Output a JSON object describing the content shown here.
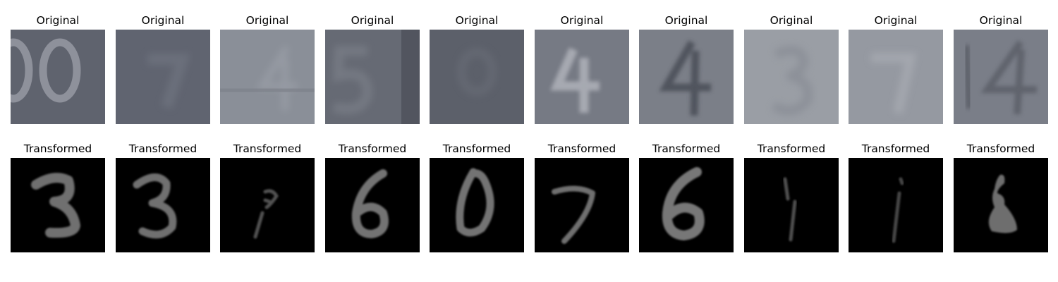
{
  "figure": {
    "rows": [
      {
        "name": "original",
        "panels": [
          {
            "title": "Original",
            "image": "house-number-digits-00",
            "tone": "#5f636e"
          },
          {
            "title": "Original",
            "image": "house-number-digit-7-blurred",
            "tone": "#606470"
          },
          {
            "title": "Original",
            "image": "house-number-digit-4-faint",
            "tone": "#8a8f98"
          },
          {
            "title": "Original",
            "image": "house-number-digit-5-blurred",
            "tone": "#666a74"
          },
          {
            "title": "Original",
            "image": "house-number-digit-blurred-dark",
            "tone": "#5c606a"
          },
          {
            "title": "Original",
            "image": "house-number-digit-4-light",
            "tone": "#767a84"
          },
          {
            "title": "Original",
            "image": "house-number-digit-4-dark",
            "tone": "#7b7f88"
          },
          {
            "title": "Original",
            "image": "house-number-digit-3-faint",
            "tone": "#9a9ea5"
          },
          {
            "title": "Original",
            "image": "house-number-digit-7-faint",
            "tone": "#9599a1"
          },
          {
            "title": "Original",
            "image": "house-number-digits-14",
            "tone": "#7a7e88"
          }
        ]
      },
      {
        "name": "transformed",
        "panels": [
          {
            "title": "Transformed",
            "image": "handwritten-digit-3-reversed",
            "tone": "#000000"
          },
          {
            "title": "Transformed",
            "image": "handwritten-digit-3",
            "tone": "#000000"
          },
          {
            "title": "Transformed",
            "image": "handwritten-thin-stroke-faint",
            "tone": "#000000"
          },
          {
            "title": "Transformed",
            "image": "handwritten-digit-6",
            "tone": "#000000"
          },
          {
            "title": "Transformed",
            "image": "handwritten-digit-0",
            "tone": "#000000"
          },
          {
            "title": "Transformed",
            "image": "handwritten-digit-7",
            "tone": "#000000"
          },
          {
            "title": "Transformed",
            "image": "handwritten-digit-6-bold",
            "tone": "#000000"
          },
          {
            "title": "Transformed",
            "image": "handwritten-digit-1-thin",
            "tone": "#000000"
          },
          {
            "title": "Transformed",
            "image": "handwritten-digit-1-faint",
            "tone": "#000000"
          },
          {
            "title": "Transformed",
            "image": "handwritten-blob-digit",
            "tone": "#000000"
          }
        ]
      }
    ]
  }
}
